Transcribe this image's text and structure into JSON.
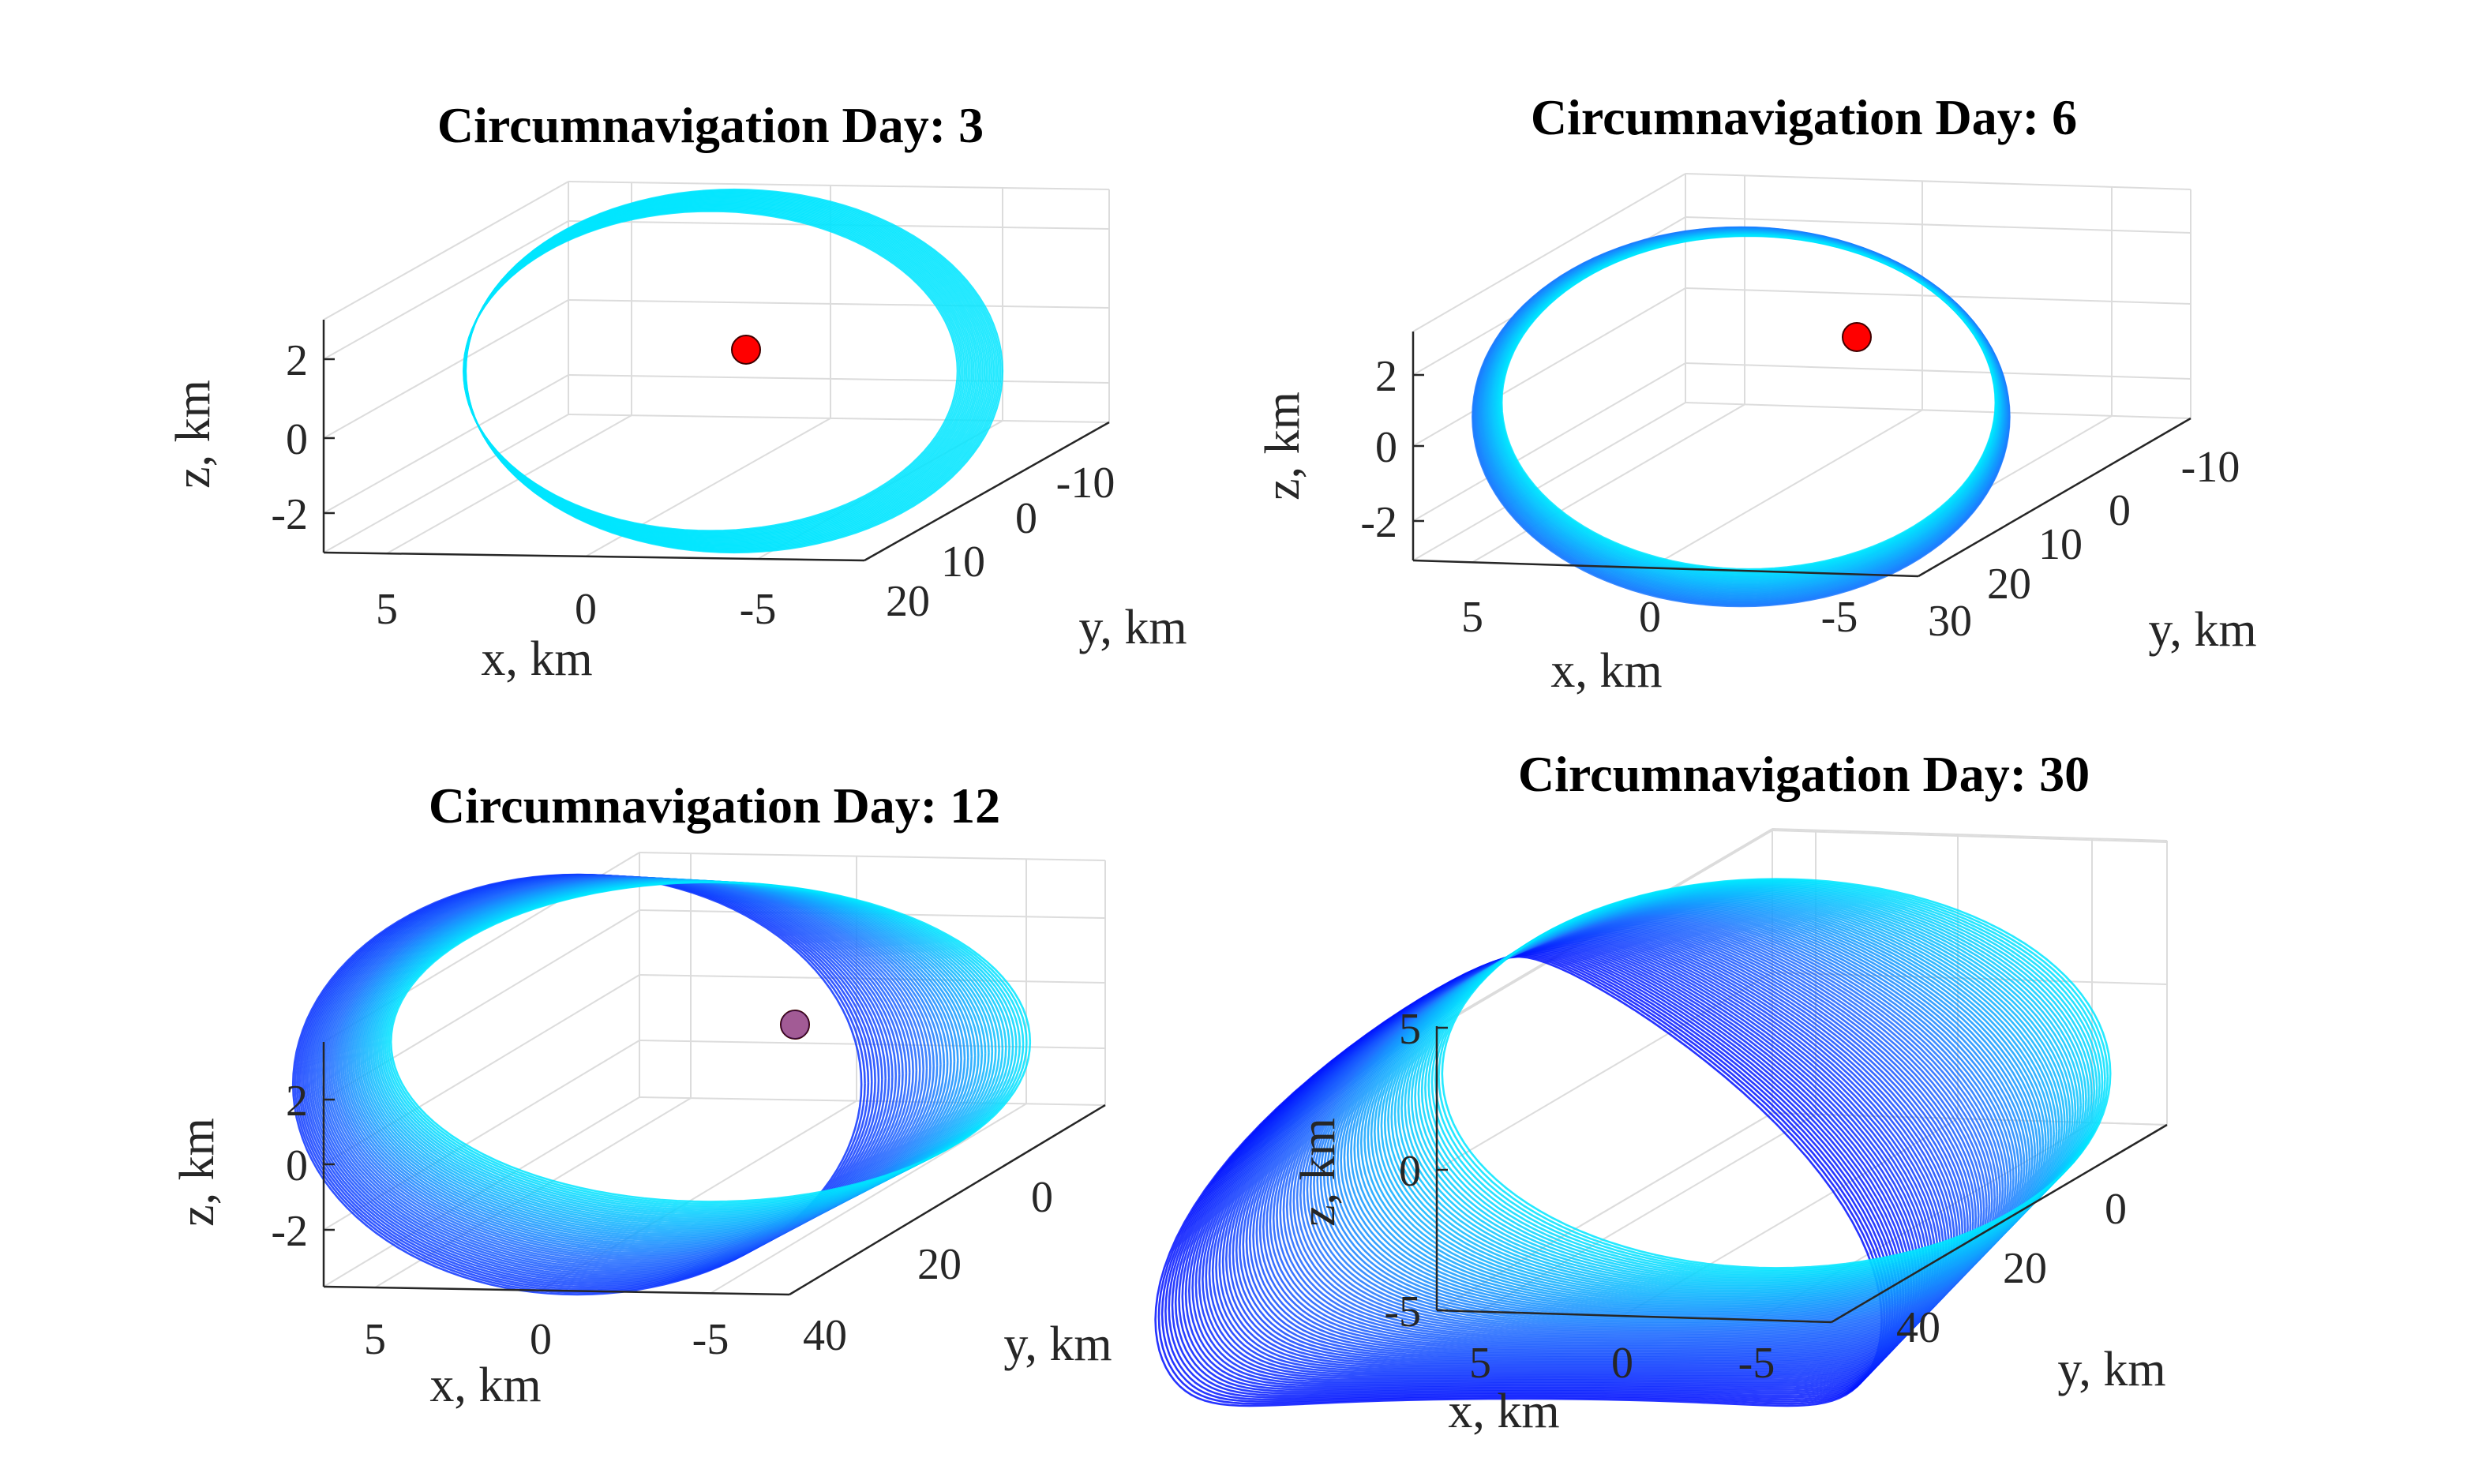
{
  "figure": {
    "background": "#ffffff",
    "colormap": [
      "#00e5ff",
      "#1e6cff",
      "#0010ff"
    ],
    "target_color": "#ff0000"
  },
  "chart_data": [
    {
      "type": "scatter",
      "title": "Circumnavigation Day: 3",
      "xlabel": "x, km",
      "ylabel": "y, km",
      "zlabel": "z, km",
      "xticks": [
        "5",
        "0",
        "-5"
      ],
      "yticks": [
        "-10",
        "0",
        "10",
        "20"
      ],
      "zticks": [
        "2",
        "0",
        "-2"
      ],
      "xlim": [
        8,
        -8
      ],
      "ylim": [
        -15,
        22
      ],
      "zlim": [
        -3,
        3
      ],
      "grid": true,
      "trajectory": {
        "day": 3,
        "loops": 1,
        "color_end": 0.0,
        "semi_axis_x_km": 5.5,
        "semi_axis_y_km": 12,
        "z_amplitude_km": 2.6
      },
      "target": {
        "x": -3,
        "y": 0,
        "z": 2.3,
        "color": "#ff0000"
      }
    },
    {
      "type": "scatter",
      "title": "Circumnavigation Day: 6",
      "xlabel": "x, km",
      "ylabel": "y, km",
      "zlabel": "z, km",
      "xticks": [
        "5",
        "0",
        "-5"
      ],
      "yticks": [
        "-10",
        "0",
        "10",
        "20",
        "30"
      ],
      "zticks": [
        "2",
        "0",
        "-2"
      ],
      "xlim": [
        8,
        -8
      ],
      "ylim": [
        -15,
        30
      ],
      "zlim": [
        -3,
        3
      ],
      "grid": true,
      "trajectory": {
        "day": 6,
        "loops": 2,
        "color_end": 0.45,
        "semi_axis_x_km": 5.5,
        "semi_axis_y_km": 12,
        "z_amplitude_km": 2.6
      },
      "target": {
        "x": -3,
        "y": 0,
        "z": 2.6,
        "color": "#ff0000"
      }
    },
    {
      "type": "scatter",
      "title": "Circumnavigation Day: 12",
      "xlabel": "x, km",
      "ylabel": "y, km",
      "zlabel": "z, km",
      "xticks": [
        "5",
        "0",
        "-5"
      ],
      "yticks": [
        "0",
        "20",
        "40"
      ],
      "zticks": [
        "2",
        "0",
        "-2"
      ],
      "xlim": [
        8,
        -8
      ],
      "ylim": [
        -15,
        42
      ],
      "zlim": [
        -3,
        3
      ],
      "grid": true,
      "trajectory": {
        "day": 12,
        "loops": 4,
        "color_end": 0.8,
        "semi_axis_x_km": 5.5,
        "semi_axis_y_km": 12,
        "z_amplitude_km": 2.6
      },
      "target": {
        "x": -3,
        "y": 0,
        "z": 2.3,
        "color": "#ff0000",
        "occluded": true
      }
    },
    {
      "type": "scatter",
      "title": "Circumnavigation Day: 30",
      "xlabel": "x, km",
      "ylabel": "y, km",
      "zlabel": "z, km",
      "xticks": [
        "5",
        "0",
        "-5"
      ],
      "yticks": [
        "0",
        "20",
        "40"
      ],
      "zticks": [
        "5",
        "0",
        "-5"
      ],
      "xlim": [
        8,
        -8
      ],
      "ylim": [
        -15,
        42
      ],
      "zlim": [
        -6,
        6
      ],
      "grid": true,
      "trajectory": {
        "day": 30,
        "loops": 10,
        "color_end": 1.0,
        "semi_axis_x_km": 5.5,
        "semi_axis_y_km": 12,
        "z_amplitude_km": 5
      },
      "target": null
    }
  ]
}
